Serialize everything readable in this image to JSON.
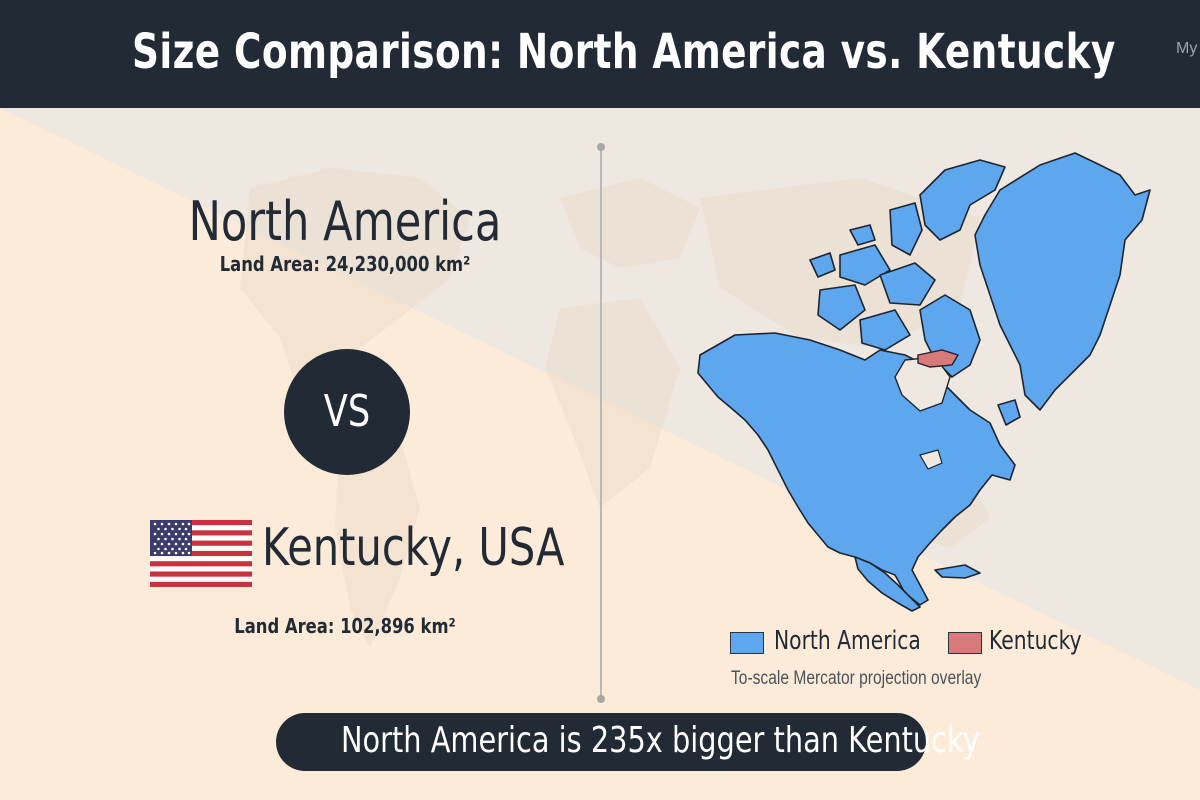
{
  "header": {
    "title": "Size Comparison: North America vs. Kentucky",
    "corner_text": "My"
  },
  "left_panel": {
    "region_a": {
      "name": "North America",
      "area_label": "Land Area: 24,230,000 km²"
    },
    "vs_label": "VS",
    "region_b": {
      "name": "Kentucky, USA",
      "area_label": "Land Area: 102,896 km²",
      "flag": "usa-flag"
    }
  },
  "map_panel": {
    "legend": [
      {
        "label": "North America",
        "color": "#5ea7ee"
      },
      {
        "label": "Kentucky",
        "color": "#d97a7a"
      }
    ],
    "note": "To-scale Mercator projection overlay"
  },
  "footer": {
    "comparison_text": "North America is 235x bigger than Kentucky"
  }
}
